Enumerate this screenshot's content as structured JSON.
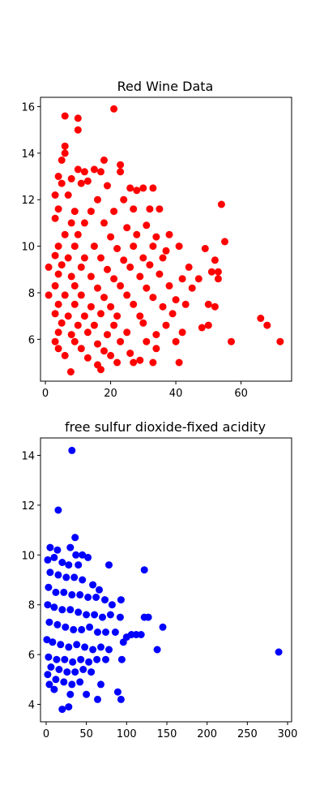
{
  "chart_data": [
    {
      "type": "scatter",
      "title": "Red Wine Data",
      "xlabel": "",
      "ylabel": "",
      "color": "#ff0000",
      "xlim": [
        -1.5,
        75.5
      ],
      "ylim": [
        4.2,
        16.4
      ],
      "xticks": [
        0,
        20,
        40,
        60
      ],
      "yticks": [
        6,
        8,
        10,
        12,
        14,
        16
      ],
      "grid": false,
      "series": [
        {
          "points": [
            [
              7.8,
              4.6
            ],
            [
              21.0,
              15.9
            ],
            [
              6.0,
              15.6
            ],
            [
              10.0,
              15.5
            ],
            [
              10.0,
              15.0
            ],
            [
              6.0,
              14.3
            ],
            [
              6.0,
              14.0
            ],
            [
              5.0,
              13.7
            ],
            [
              18.0,
              13.7
            ],
            [
              23.0,
              13.5
            ],
            [
              10.0,
              13.3
            ],
            [
              15.0,
              13.3
            ],
            [
              23.0,
              13.2
            ],
            [
              17.0,
              13.2
            ],
            [
              12.0,
              13.2
            ],
            [
              4.0,
              13.0
            ],
            [
              8.0,
              12.9
            ],
            [
              13.0,
              12.8
            ],
            [
              5.0,
              12.7
            ],
            [
              11.0,
              12.7
            ],
            [
              19.0,
              12.6
            ],
            [
              26.0,
              12.5
            ],
            [
              30.0,
              12.5
            ],
            [
              28.0,
              12.4
            ],
            [
              33.0,
              12.5
            ],
            [
              3.0,
              12.2
            ],
            [
              7.0,
              12.2
            ],
            [
              16.0,
              12.0
            ],
            [
              24.0,
              12.0
            ],
            [
              54.0,
              11.8
            ],
            [
              4.0,
              11.6
            ],
            [
              9.0,
              11.5
            ],
            [
              14.0,
              11.5
            ],
            [
              21.0,
              11.5
            ],
            [
              27.0,
              11.6
            ],
            [
              32.0,
              11.6
            ],
            [
              35.0,
              11.6
            ],
            [
              3.0,
              11.2
            ],
            [
              8.0,
              11.0
            ],
            [
              12.0,
              11.0
            ],
            [
              18.0,
              11.0
            ],
            [
              25.0,
              10.8
            ],
            [
              31.0,
              10.9
            ],
            [
              6.0,
              10.5
            ],
            [
              10.0,
              10.5
            ],
            [
              20.0,
              10.4
            ],
            [
              28.0,
              10.5
            ],
            [
              34.0,
              10.4
            ],
            [
              38.0,
              10.5
            ],
            [
              55.0,
              10.2
            ],
            [
              4.0,
              10.0
            ],
            [
              9.0,
              10.0
            ],
            [
              15.0,
              10.0
            ],
            [
              22.0,
              9.9
            ],
            [
              27.0,
              10.0
            ],
            [
              33.0,
              10.0
            ],
            [
              37.0,
              9.8
            ],
            [
              41.0,
              10.0
            ],
            [
              49.0,
              9.9
            ],
            [
              3.0,
              9.6
            ],
            [
              7.0,
              9.5
            ],
            [
              12.0,
              9.5
            ],
            [
              17.0,
              9.5
            ],
            [
              24.0,
              9.4
            ],
            [
              30.0,
              9.5
            ],
            [
              36.0,
              9.5
            ],
            [
              52.0,
              9.4
            ],
            [
              5.0,
              9.2
            ],
            [
              11.0,
              9.1
            ],
            [
              19.0,
              9.0
            ],
            [
              26.0,
              9.1
            ],
            [
              32.0,
              9.2
            ],
            [
              44.0,
              9.1
            ],
            [
              1.0,
              9.1
            ],
            [
              51.0,
              8.9
            ],
            [
              53.0,
              8.9
            ],
            [
              4.0,
              8.8
            ],
            [
              8.0,
              8.7
            ],
            [
              14.0,
              8.7
            ],
            [
              21.0,
              8.6
            ],
            [
              29.0,
              8.7
            ],
            [
              35.0,
              8.8
            ],
            [
              42.0,
              8.6
            ],
            [
              47.0,
              8.6
            ],
            [
              53.0,
              8.6
            ],
            [
              3.0,
              8.3
            ],
            [
              9.0,
              8.3
            ],
            [
              16.0,
              8.2
            ],
            [
              23.0,
              8.3
            ],
            [
              31.0,
              8.2
            ],
            [
              38.0,
              8.3
            ],
            [
              45.0,
              8.2
            ],
            [
              6.0,
              7.9
            ],
            [
              11.0,
              7.9
            ],
            [
              18.0,
              7.8
            ],
            [
              25.0,
              7.9
            ],
            [
              33.0,
              7.8
            ],
            [
              40.0,
              7.7
            ],
            [
              1.0,
              7.9
            ],
            [
              4.0,
              7.5
            ],
            [
              9.0,
              7.5
            ],
            [
              14.0,
              7.4
            ],
            [
              20.0,
              7.4
            ],
            [
              27.0,
              7.5
            ],
            [
              36.0,
              7.4
            ],
            [
              43.0,
              7.5
            ],
            [
              50.0,
              7.5
            ],
            [
              52.0,
              7.4
            ],
            [
              3.0,
              7.1
            ],
            [
              7.0,
              7.0
            ],
            [
              12.0,
              7.0
            ],
            [
              17.0,
              7.1
            ],
            [
              22.0,
              7.0
            ],
            [
              29.0,
              7.0
            ],
            [
              39.0,
              7.1
            ],
            [
              66.0,
              6.9
            ],
            [
              5.0,
              6.7
            ],
            [
              10.0,
              6.6
            ],
            [
              15.0,
              6.6
            ],
            [
              21.0,
              6.6
            ],
            [
              30.0,
              6.7
            ],
            [
              37.0,
              6.6
            ],
            [
              50.0,
              6.6
            ],
            [
              68.0,
              6.6
            ],
            [
              4.0,
              6.3
            ],
            [
              8.0,
              6.2
            ],
            [
              13.0,
              6.3
            ],
            [
              19.0,
              6.2
            ],
            [
              25.0,
              6.3
            ],
            [
              34.0,
              6.2
            ],
            [
              42.0,
              6.3
            ],
            [
              48.0,
              6.5
            ],
            [
              3.0,
              5.9
            ],
            [
              9.0,
              5.9
            ],
            [
              16.0,
              5.8
            ],
            [
              23.0,
              5.9
            ],
            [
              31.0,
              5.9
            ],
            [
              40.0,
              5.9
            ],
            [
              57.0,
              5.9
            ],
            [
              72.0,
              5.9
            ],
            [
              4.0,
              5.6
            ],
            [
              11.0,
              5.6
            ],
            [
              18.0,
              5.5
            ],
            [
              26.0,
              5.4
            ],
            [
              34.0,
              5.6
            ],
            [
              6.0,
              5.3
            ],
            [
              13.0,
              5.2
            ],
            [
              20.0,
              5.3
            ],
            [
              29.0,
              5.1
            ],
            [
              16.0,
              4.9
            ],
            [
              22.0,
              5.0
            ],
            [
              27.0,
              5.0
            ],
            [
              33.0,
              5.0
            ],
            [
              41.0,
              5.0
            ],
            [
              17.0,
              4.7
            ]
          ]
        }
      ]
    },
    {
      "type": "scatter",
      "title": "free sulfur dioxide-fixed acidity",
      "xlabel": "",
      "ylabel": "",
      "color": "#0000ff",
      "xlim": [
        -7,
        305
      ],
      "ylim": [
        3.3,
        14.7
      ],
      "xticks": [
        0,
        50,
        100,
        150,
        200,
        250,
        300
      ],
      "yticks": [
        4,
        6,
        8,
        10,
        12,
        14
      ],
      "grid": false,
      "series": [
        {
          "points": [
            [
              32.0,
              14.2
            ],
            [
              15.0,
              11.8
            ],
            [
              36.0,
              10.7
            ],
            [
              5.0,
              10.3
            ],
            [
              30.0,
              10.3
            ],
            [
              14.0,
              10.2
            ],
            [
              37.0,
              10.0
            ],
            [
              45.0,
              10.0
            ],
            [
              2.0,
              9.8
            ],
            [
              10.0,
              9.9
            ],
            [
              52.0,
              9.9
            ],
            [
              20.0,
              9.7
            ],
            [
              28.0,
              9.6
            ],
            [
              40.0,
              9.6
            ],
            [
              78.0,
              9.6
            ],
            [
              5.0,
              9.3
            ],
            [
              15.0,
              9.2
            ],
            [
              25.0,
              9.1
            ],
            [
              35.0,
              9.1
            ],
            [
              45.0,
              9.0
            ],
            [
              122.0,
              9.4
            ],
            [
              58.0,
              8.8
            ],
            [
              66.0,
              8.6
            ],
            [
              3.0,
              8.7
            ],
            [
              12.0,
              8.5
            ],
            [
              22.0,
              8.5
            ],
            [
              32.0,
              8.4
            ],
            [
              42.0,
              8.4
            ],
            [
              52.0,
              8.3
            ],
            [
              62.0,
              8.3
            ],
            [
              73.0,
              8.2
            ],
            [
              93.0,
              8.2
            ],
            [
              82.0,
              8.0
            ],
            [
              2.0,
              8.0
            ],
            [
              10.0,
              7.9
            ],
            [
              20.0,
              7.8
            ],
            [
              30.0,
              7.8
            ],
            [
              40.0,
              7.7
            ],
            [
              50.0,
              7.6
            ],
            [
              60.0,
              7.6
            ],
            [
              70.0,
              7.5
            ],
            [
              80.0,
              7.6
            ],
            [
              92.0,
              7.5
            ],
            [
              127.0,
              7.5
            ],
            [
              122.0,
              7.5
            ],
            [
              145.0,
              7.1
            ],
            [
              4.0,
              7.3
            ],
            [
              14.0,
              7.2
            ],
            [
              24.0,
              7.1
            ],
            [
              34.0,
              7.0
            ],
            [
              44.0,
              7.0
            ],
            [
              54.0,
              7.1
            ],
            [
              64.0,
              6.9
            ],
            [
              74.0,
              6.9
            ],
            [
              86.0,
              6.9
            ],
            [
              106.0,
              6.8
            ],
            [
              112.0,
              6.8
            ],
            [
              118.0,
              6.8
            ],
            [
              100.0,
              6.7
            ],
            [
              96.0,
              6.5
            ],
            [
              1.0,
              6.6
            ],
            [
              8.0,
              6.5
            ],
            [
              18.0,
              6.4
            ],
            [
              28.0,
              6.3
            ],
            [
              38.0,
              6.4
            ],
            [
              48.0,
              6.3
            ],
            [
              58.0,
              6.2
            ],
            [
              68.0,
              6.3
            ],
            [
              78.0,
              6.2
            ],
            [
              138.0,
              6.2
            ],
            [
              289.0,
              6.1
            ],
            [
              3.0,
              5.9
            ],
            [
              13.0,
              5.8
            ],
            [
              23.0,
              5.8
            ],
            [
              33.0,
              5.7
            ],
            [
              43.0,
              5.8
            ],
            [
              53.0,
              5.7
            ],
            [
              63.0,
              5.8
            ],
            [
              74.0,
              5.8
            ],
            [
              94.0,
              5.8
            ],
            [
              6.0,
              5.5
            ],
            [
              16.0,
              5.4
            ],
            [
              26.0,
              5.3
            ],
            [
              36.0,
              5.3
            ],
            [
              46.0,
              5.4
            ],
            [
              56.0,
              5.3
            ],
            [
              2.0,
              5.2
            ],
            [
              12.0,
              5.0
            ],
            [
              22.0,
              4.9
            ],
            [
              32.0,
              4.8
            ],
            [
              42.0,
              4.9
            ],
            [
              68.0,
              4.8
            ],
            [
              4.0,
              4.8
            ],
            [
              10.0,
              4.6
            ],
            [
              30.0,
              4.4
            ],
            [
              50.0,
              4.4
            ],
            [
              89.0,
              4.5
            ],
            [
              93.0,
              4.2
            ],
            [
              64.0,
              4.2
            ],
            [
              20.0,
              3.8
            ],
            [
              28.0,
              3.9
            ]
          ]
        }
      ]
    }
  ]
}
